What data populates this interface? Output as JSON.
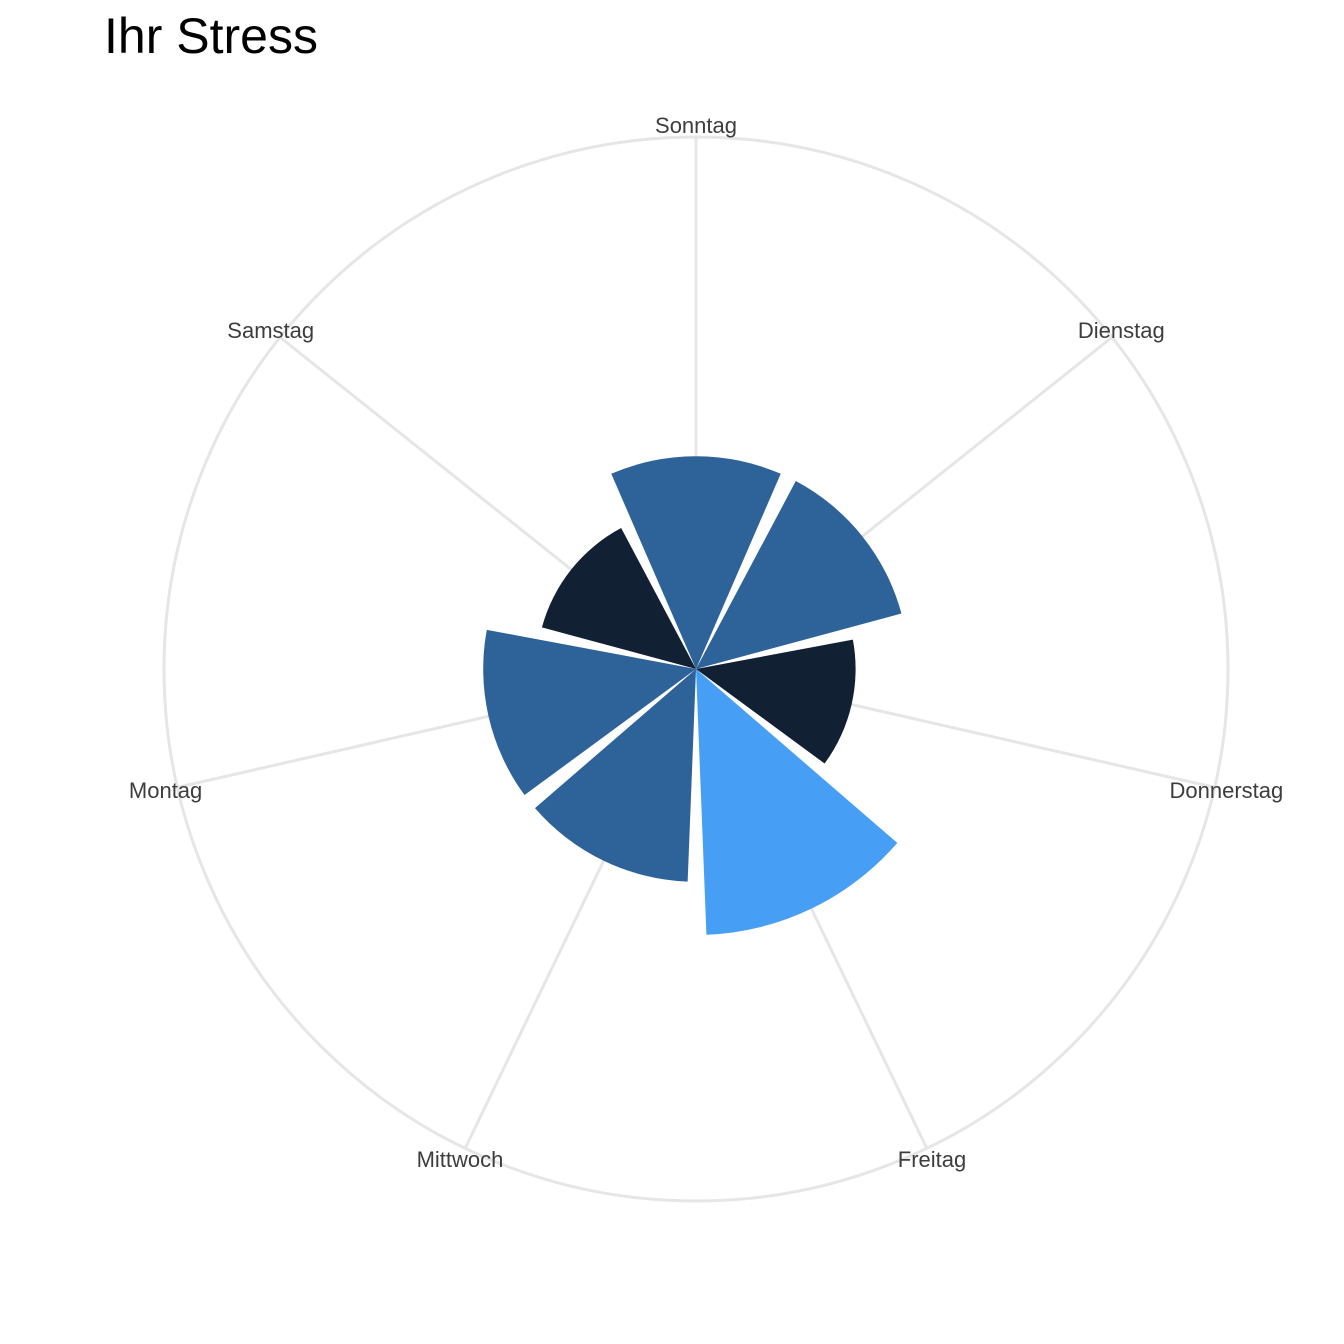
{
  "chart_data": {
    "type": "polar-bar",
    "title": "Ihr Stress",
    "categories": [
      "Sonntag",
      "Dienstag",
      "Donnerstag",
      "Freitag",
      "Mittwoch",
      "Montag",
      "Samstag"
    ],
    "values": [
      6,
      6,
      4.5,
      7.5,
      6,
      6,
      4.5
    ],
    "colors": [
      "#2e6399",
      "#2e6399",
      "#112033",
      "#479ef5",
      "#2e6399",
      "#2e6399",
      "#112033"
    ],
    "rlim": [
      0,
      15
    ],
    "grid": true,
    "legend": "none"
  }
}
